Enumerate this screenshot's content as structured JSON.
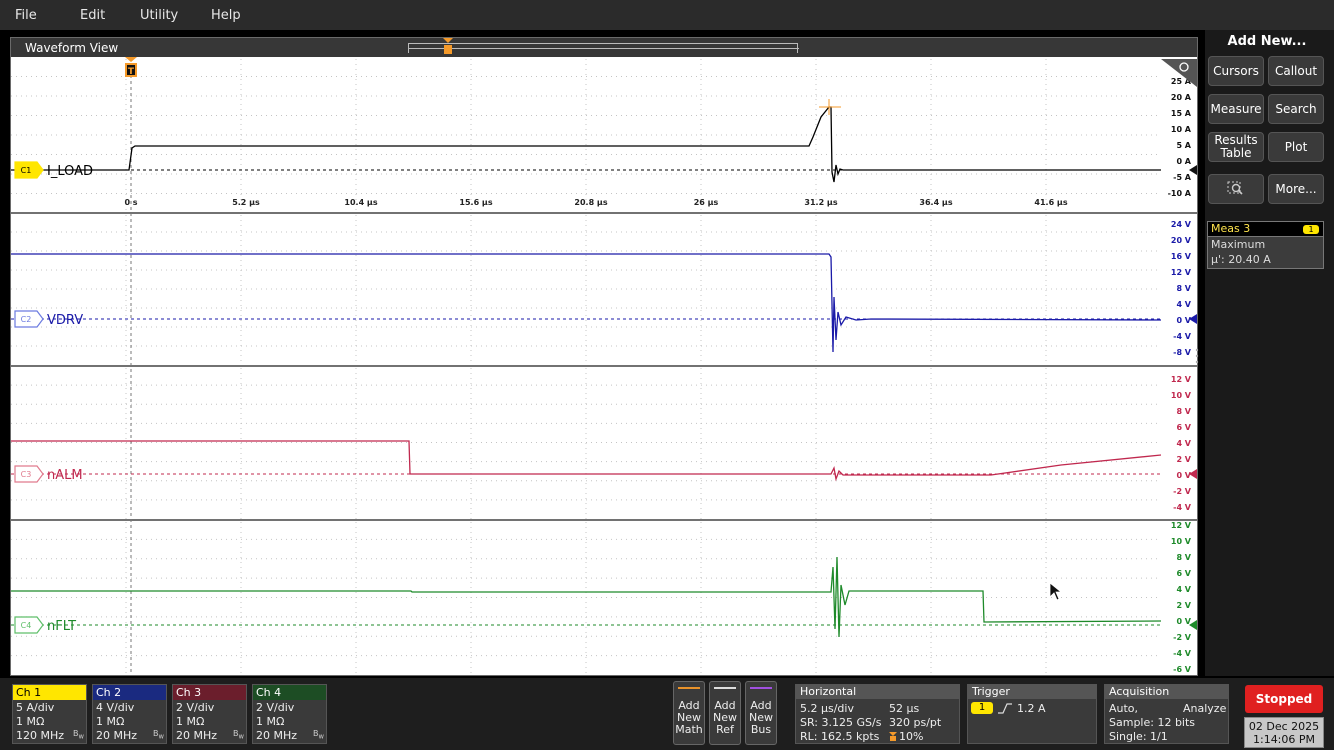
{
  "menu": {
    "file": "File",
    "edit": "Edit",
    "utility": "Utility",
    "help": "Help"
  },
  "waveform_view": {
    "title": "Waveform View",
    "trigger_marker": "T",
    "time_ticks": [
      "0 s",
      "5.2 µs",
      "10.4 µs",
      "15.6 µs",
      "20.8 µs",
      "26 µs",
      "31.2 µs",
      "36.4 µs",
      "41.6 µs"
    ],
    "traces": [
      {
        "id": "C1",
        "label": "I_LOAD",
        "color": "#000000",
        "badge_color": "#ffe600",
        "scale": [
          "25 A",
          "20 A",
          "15 A",
          "10 A",
          "5 A",
          "0 A",
          "-5 A",
          "-10 A"
        ]
      },
      {
        "id": "C2",
        "label": "VDRV",
        "color": "#1a1aa8",
        "badge_color": "#6c7be0",
        "scale": [
          "24 V",
          "20 V",
          "16 V",
          "12 V",
          "8 V",
          "4 V",
          "0 V",
          "-4 V",
          "-8 V"
        ]
      },
      {
        "id": "C3",
        "label": "nALM",
        "color": "#c0284e",
        "badge_color": "#e07b8e",
        "scale": [
          "12 V",
          "10 V",
          "8 V",
          "6 V",
          "4 V",
          "2 V",
          "0 V",
          "-2 V",
          "-4 V"
        ]
      },
      {
        "id": "C4",
        "label": "nFLT",
        "color": "#1e8a2a",
        "badge_color": "#5fbf6a",
        "scale": [
          "12 V",
          "10 V",
          "8 V",
          "6 V",
          "4 V",
          "2 V",
          "0 V",
          "-2 V",
          "-4 V",
          "-6 V"
        ]
      }
    ]
  },
  "side_panel": {
    "title": "Add New...",
    "buttons": {
      "cursors": "Cursors",
      "callout": "Callout",
      "measure": "Measure",
      "search": "Search",
      "results_line1": "Results",
      "results_line2": "Table",
      "plot": "Plot",
      "more": "More..."
    }
  },
  "measurement": {
    "name": "Meas 3",
    "badge": "1",
    "type": "Maximum",
    "value": "µ': 20.40 A"
  },
  "channels": [
    {
      "name": "Ch 1",
      "scale": "5 A/div",
      "impedance": "1 MΩ",
      "bandwidth": "120 MHz",
      "header_color": "#ffe600",
      "header_text": "#000"
    },
    {
      "name": "Ch 2",
      "scale": "4 V/div",
      "impedance": "1 MΩ",
      "bandwidth": "20 MHz",
      "header_color": "#1a2a80",
      "header_text": "#fff"
    },
    {
      "name": "Ch 3",
      "scale": "2 V/div",
      "impedance": "1 MΩ",
      "bandwidth": "20 MHz",
      "header_color": "#6b1e2c",
      "header_text": "#fff"
    },
    {
      "name": "Ch 4",
      "scale": "2 V/div",
      "impedance": "1 MΩ",
      "bandwidth": "20 MHz",
      "header_color": "#1d4d24",
      "header_text": "#fff"
    }
  ],
  "add_new": {
    "math": {
      "l1": "Add",
      "l2": "New",
      "l3": "Math",
      "color": "#e8922a"
    },
    "ref": {
      "l1": "Add",
      "l2": "New",
      "l3": "Ref",
      "color": "#dddddd"
    },
    "bus": {
      "l1": "Add",
      "l2": "New",
      "l3": "Bus",
      "color": "#a050e0"
    }
  },
  "horizontal": {
    "title": "Horizontal",
    "scale": "5.2 µs/div",
    "duration": "52 µs",
    "sample_rate": "SR: 3.125 GS/s",
    "resolution": "320 ps/pt",
    "record_length": "RL: 162.5 kpts",
    "position": "10%"
  },
  "trigger": {
    "title": "Trigger",
    "source": "1",
    "level": "1.2 A"
  },
  "acquisition": {
    "title": "Acquisition",
    "mode": "Auto,",
    "analyze": "Analyze",
    "sample": "Sample: 12 bits",
    "single": "Single: 1/1"
  },
  "run_state": "Stopped",
  "date": "02 Dec 2025",
  "time": "1:14:06 PM"
}
